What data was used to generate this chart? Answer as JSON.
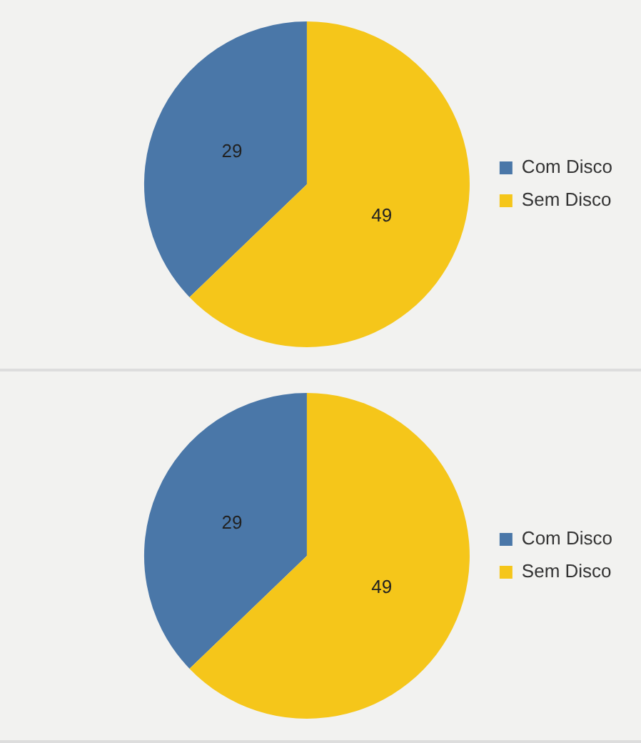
{
  "chart_data": [
    {
      "type": "pie",
      "categories": [
        "Com Disco",
        "Sem Disco"
      ],
      "values": [
        29,
        49
      ],
      "colors": [
        "#4a77a8",
        "#f5c61a"
      ],
      "data_labels": true,
      "legend": "right"
    },
    {
      "type": "pie",
      "categories": [
        "Com Disco",
        "Sem Disco"
      ],
      "values": [
        29,
        49
      ],
      "colors": [
        "#4a77a8",
        "#f5c61a"
      ],
      "data_labels": true,
      "legend": "right"
    }
  ]
}
